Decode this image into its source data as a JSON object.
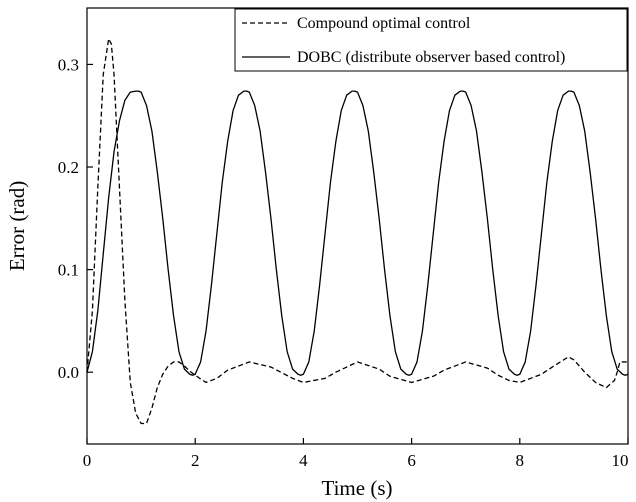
{
  "chart_data": {
    "type": "line",
    "title": "",
    "xlabel": "Time (s)",
    "ylabel": "Error (rad)",
    "xlim": [
      0,
      10
    ],
    "ylim": [
      -0.07,
      0.355
    ],
    "x_ticks": [
      0,
      2,
      4,
      6,
      8,
      10
    ],
    "x_tick_labels": [
      "0",
      "2",
      "4",
      "6",
      "8",
      "10"
    ],
    "y_ticks": [
      0.0,
      0.1,
      0.2,
      0.3
    ],
    "y_tick_labels": [
      "0.0",
      "0.1",
      "0.2",
      "0.3"
    ],
    "grid": false,
    "legend_position": "top-right",
    "series": [
      {
        "name": "Compound optimal control",
        "style": "dashed",
        "color": "#000000",
        "x": [
          0,
          0.1,
          0.2,
          0.3,
          0.4,
          0.45,
          0.5,
          0.6,
          0.7,
          0.8,
          0.9,
          1.0,
          1.1,
          1.2,
          1.3,
          1.4,
          1.5,
          1.6,
          1.7,
          1.8,
          1.9,
          2.0,
          2.2,
          2.4,
          2.6,
          3.0,
          3.4,
          3.8,
          4.0,
          4.4,
          4.6,
          5.0,
          5.4,
          5.6,
          6.0,
          6.4,
          6.6,
          7.0,
          7.4,
          7.6,
          7.8,
          8.0,
          8.4,
          8.6,
          8.9,
          9.0,
          9.2,
          9.4,
          9.6,
          9.75,
          9.8,
          9.85,
          10.0
        ],
        "y": [
          0,
          0.06,
          0.18,
          0.29,
          0.325,
          0.32,
          0.29,
          0.18,
          0.07,
          -0.01,
          -0.04,
          -0.05,
          -0.05,
          -0.035,
          -0.015,
          -0.002,
          0.006,
          0.01,
          0.01,
          0.006,
          0.001,
          -0.003,
          -0.01,
          -0.006,
          0.002,
          0.01,
          0.005,
          -0.006,
          -0.01,
          -0.006,
          0.0,
          0.01,
          0.003,
          -0.004,
          -0.01,
          -0.004,
          0.002,
          0.01,
          0.004,
          -0.003,
          -0.008,
          -0.01,
          -0.002,
          0.005,
          0.015,
          0.012,
          0.0,
          -0.01,
          -0.015,
          -0.008,
          0.0,
          0.01,
          0.01
        ]
      },
      {
        "name": "DOBC (distribute observer based control)",
        "style": "solid",
        "color": "#000000",
        "x": [
          0,
          0.1,
          0.2,
          0.3,
          0.4,
          0.5,
          0.6,
          0.7,
          0.8,
          0.9,
          0.95,
          1.0,
          1.1,
          1.2,
          1.3,
          1.4,
          1.5,
          1.6,
          1.7,
          1.8,
          1.9,
          1.95,
          2.0,
          2.1,
          2.2,
          2.3,
          2.4,
          2.5,
          2.6,
          2.7,
          2.8,
          2.9,
          2.95,
          3.0,
          3.1,
          3.2,
          3.3,
          3.4,
          3.5,
          3.6,
          3.7,
          3.8,
          3.9,
          3.95,
          4.0,
          4.1,
          4.2,
          4.3,
          4.4,
          4.5,
          4.6,
          4.7,
          4.8,
          4.9,
          4.95,
          5.0,
          5.1,
          5.2,
          5.3,
          5.4,
          5.5,
          5.6,
          5.7,
          5.8,
          5.9,
          5.95,
          6.0,
          6.1,
          6.2,
          6.3,
          6.4,
          6.5,
          6.6,
          6.7,
          6.8,
          6.9,
          6.95,
          7.0,
          7.1,
          7.2,
          7.3,
          7.4,
          7.5,
          7.6,
          7.7,
          7.8,
          7.9,
          7.95,
          8.0,
          8.1,
          8.2,
          8.3,
          8.4,
          8.5,
          8.6,
          8.7,
          8.8,
          8.9,
          8.95,
          9.0,
          9.1,
          9.2,
          9.3,
          9.4,
          9.5,
          9.6,
          9.7,
          9.8,
          9.9,
          9.95,
          10.0
        ],
        "y": [
          0,
          0.02,
          0.06,
          0.115,
          0.17,
          0.215,
          0.245,
          0.265,
          0.273,
          0.274,
          0.274,
          0.273,
          0.26,
          0.235,
          0.195,
          0.15,
          0.1,
          0.055,
          0.02,
          0.003,
          -0.002,
          -0.003,
          -0.002,
          0.01,
          0.04,
          0.085,
          0.135,
          0.185,
          0.225,
          0.255,
          0.27,
          0.274,
          0.274,
          0.273,
          0.26,
          0.235,
          0.195,
          0.15,
          0.1,
          0.055,
          0.02,
          0.003,
          -0.002,
          -0.003,
          -0.002,
          0.01,
          0.04,
          0.085,
          0.135,
          0.185,
          0.225,
          0.255,
          0.27,
          0.274,
          0.274,
          0.273,
          0.26,
          0.235,
          0.195,
          0.15,
          0.1,
          0.055,
          0.02,
          0.003,
          -0.002,
          -0.003,
          -0.002,
          0.01,
          0.04,
          0.085,
          0.135,
          0.185,
          0.225,
          0.255,
          0.27,
          0.274,
          0.274,
          0.273,
          0.26,
          0.235,
          0.195,
          0.15,
          0.1,
          0.055,
          0.02,
          0.003,
          -0.002,
          -0.003,
          -0.002,
          0.01,
          0.04,
          0.085,
          0.135,
          0.185,
          0.225,
          0.255,
          0.27,
          0.274,
          0.274,
          0.273,
          0.26,
          0.235,
          0.195,
          0.15,
          0.1,
          0.055,
          0.02,
          0.003,
          -0.002,
          -0.003,
          -0.002
        ]
      }
    ]
  }
}
